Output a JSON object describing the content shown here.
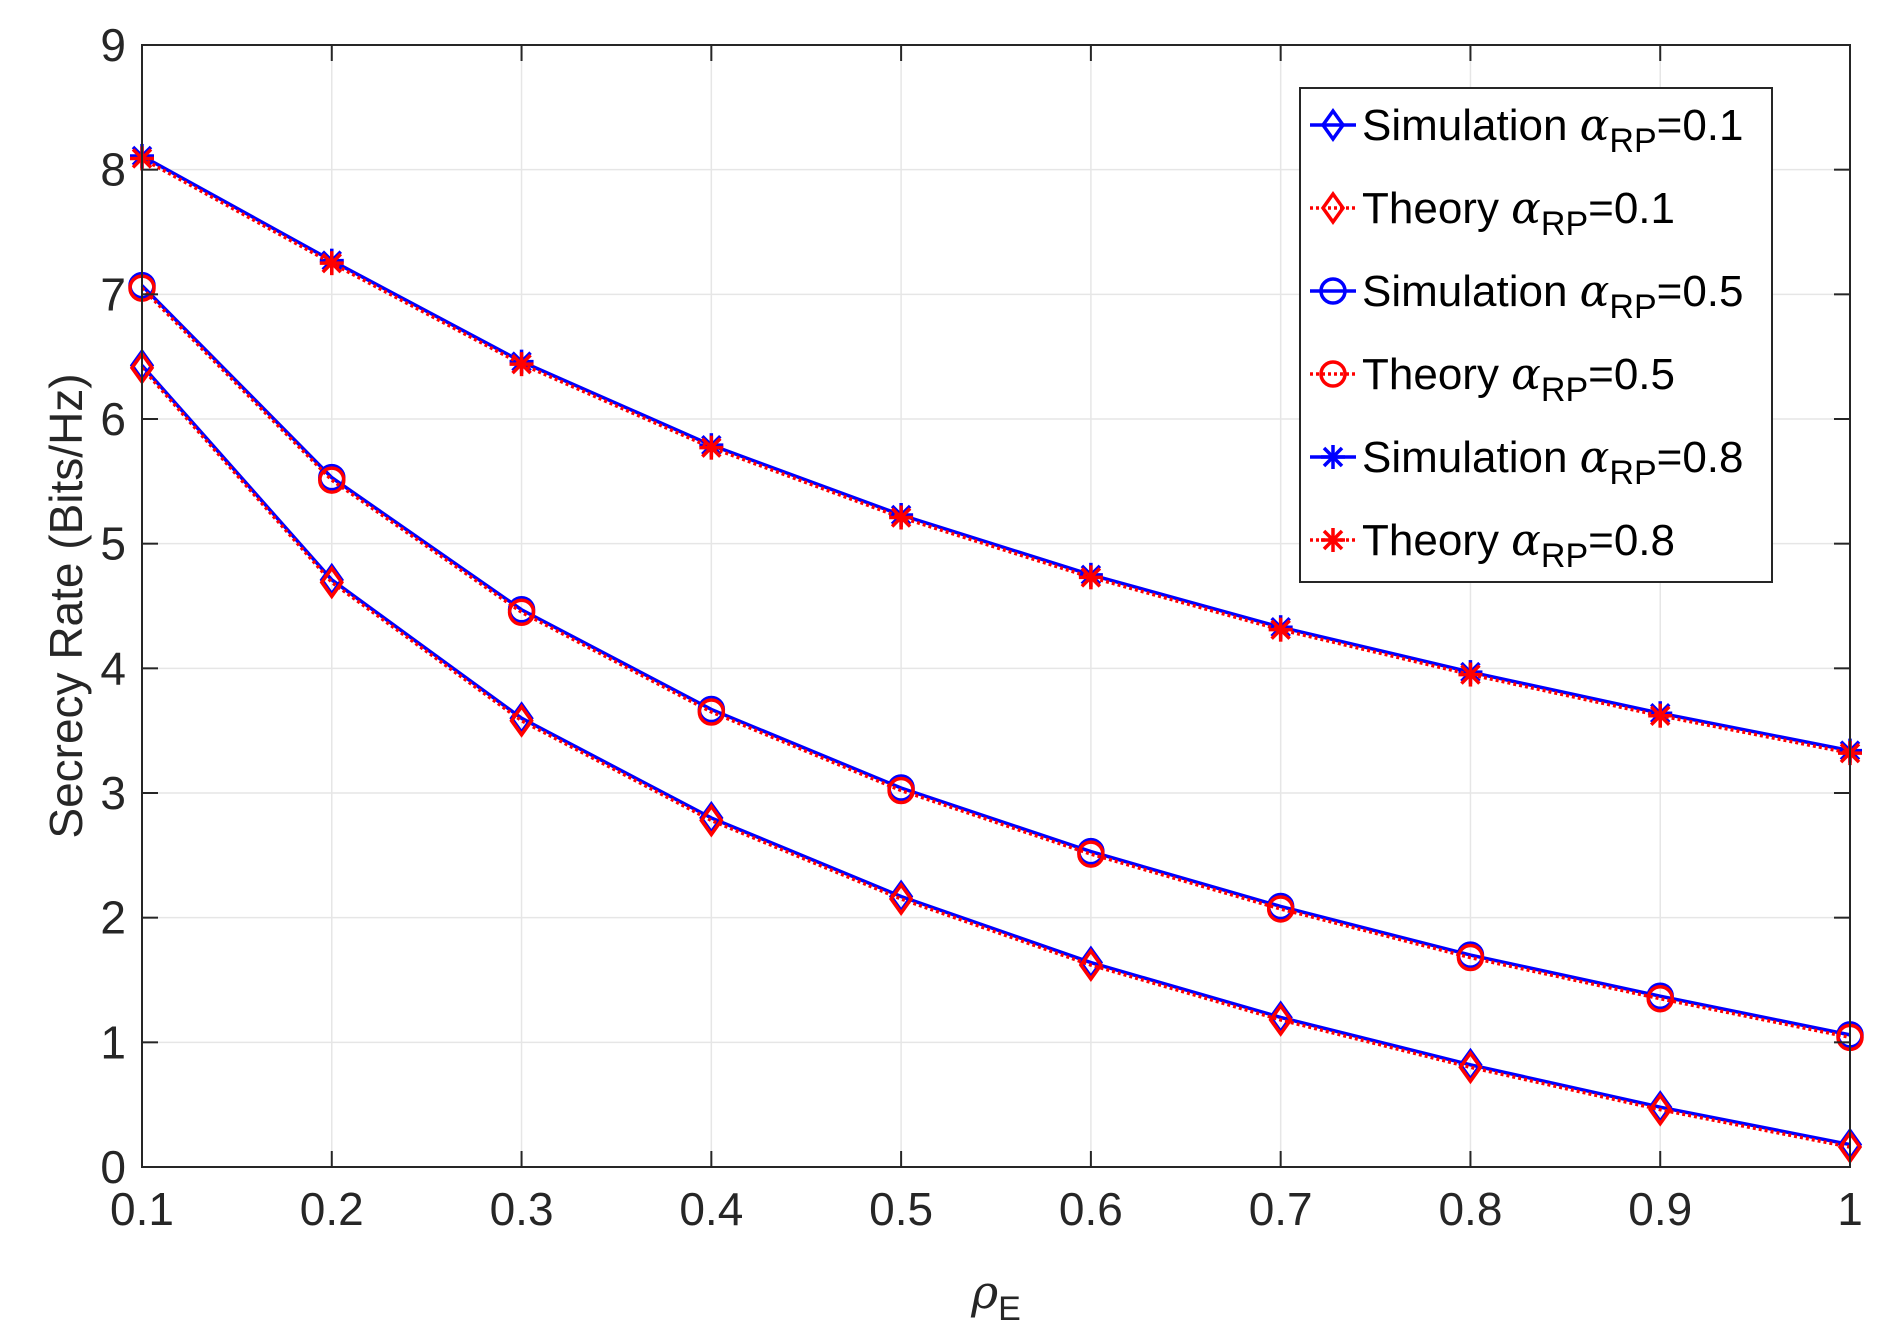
{
  "chart_data": {
    "type": "line",
    "title": "",
    "xlabel": {
      "symbol": "ρ",
      "subscript": "E"
    },
    "ylabel": "Secrecy Rate (Bits/Hz)",
    "xlim": [
      0.1,
      1
    ],
    "ylim": [
      0,
      9
    ],
    "grid": true,
    "x": [
      0.1,
      0.2,
      0.3,
      0.4,
      0.5,
      0.6,
      0.7,
      0.8,
      0.9,
      1.0
    ],
    "x_tick_labels": [
      "0.1",
      "0.2",
      "0.3",
      "0.4",
      "0.5",
      "0.6",
      "0.7",
      "0.8",
      "0.9",
      "1"
    ],
    "y_tick_labels": [
      "0",
      "1",
      "2",
      "3",
      "4",
      "5",
      "6",
      "7",
      "8",
      "9"
    ],
    "legend_position": "top-right",
    "series": [
      {
        "name": "Simulation α_RP=0.1",
        "label_prefix": "Simulation",
        "label_symbol": "α",
        "label_sub": "RP",
        "label_suffix": "=0.1",
        "color": "#0000ff",
        "marker": "diamond",
        "line": "solid",
        "values": [
          6.43,
          4.71,
          3.6,
          2.8,
          2.17,
          1.64,
          1.2,
          0.82,
          0.48,
          0.18
        ]
      },
      {
        "name": "Theory α_RP=0.1",
        "label_prefix": "Theory",
        "label_symbol": "α",
        "label_sub": "RP",
        "label_suffix": "=0.1",
        "color": "#ff0000",
        "marker": "diamond",
        "line": "dotted",
        "values": [
          6.41,
          4.69,
          3.58,
          2.78,
          2.15,
          1.62,
          1.18,
          0.8,
          0.46,
          0.16
        ]
      },
      {
        "name": "Simulation α_RP=0.5",
        "label_prefix": "Simulation",
        "label_symbol": "α",
        "label_sub": "RP",
        "label_suffix": "=0.5",
        "color": "#0000ff",
        "marker": "circle",
        "line": "solid",
        "values": [
          7.07,
          5.53,
          4.47,
          3.67,
          3.04,
          2.53,
          2.09,
          1.7,
          1.37,
          1.06
        ]
      },
      {
        "name": "Theory α_RP=0.5",
        "label_prefix": "Theory",
        "label_symbol": "α",
        "label_sub": "RP",
        "label_suffix": "=0.5",
        "color": "#ff0000",
        "marker": "circle",
        "line": "dotted",
        "values": [
          7.05,
          5.51,
          4.45,
          3.65,
          3.02,
          2.51,
          2.07,
          1.68,
          1.35,
          1.04
        ]
      },
      {
        "name": "Simulation α_RP=0.8",
        "label_prefix": "Simulation",
        "label_symbol": "α",
        "label_sub": "RP",
        "label_suffix": "=0.8",
        "color": "#0000ff",
        "marker": "asterisk",
        "line": "solid",
        "values": [
          8.11,
          7.27,
          6.46,
          5.79,
          5.23,
          4.75,
          4.33,
          3.97,
          3.64,
          3.34
        ]
      },
      {
        "name": "Theory α_RP=0.8",
        "label_prefix": "Theory",
        "label_symbol": "α",
        "label_sub": "RP",
        "label_suffix": "=0.8",
        "color": "#ff0000",
        "marker": "asterisk",
        "line": "dotted",
        "values": [
          8.09,
          7.25,
          6.44,
          5.77,
          5.21,
          4.73,
          4.31,
          3.95,
          3.62,
          3.32
        ]
      }
    ]
  }
}
